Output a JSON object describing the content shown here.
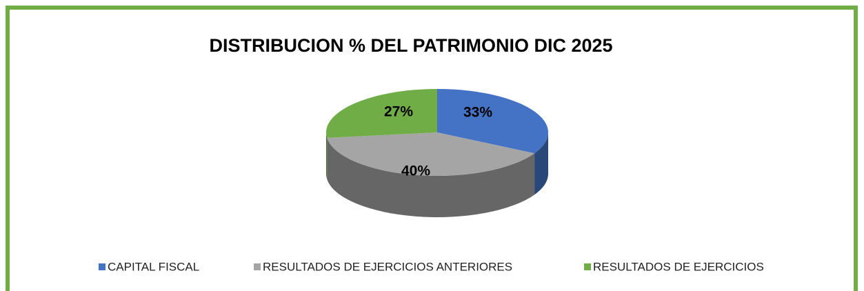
{
  "chart_data": {
    "type": "pie3d",
    "title": "DISTRIBUCION % DEL PATRIMONIO DIC 2025",
    "categories": [
      "CAPITAL FISCAL",
      "RESULTADOS DE EJERCICIOS ANTERIORES",
      "RESULTADOS DE EJERCICIOS"
    ],
    "values": [
      33,
      40,
      27
    ],
    "value_labels": [
      "33%",
      "40%",
      "27%"
    ],
    "colors": [
      "#4472c4",
      "#a5a5a5",
      "#70ad47"
    ],
    "legend": "bottom"
  }
}
